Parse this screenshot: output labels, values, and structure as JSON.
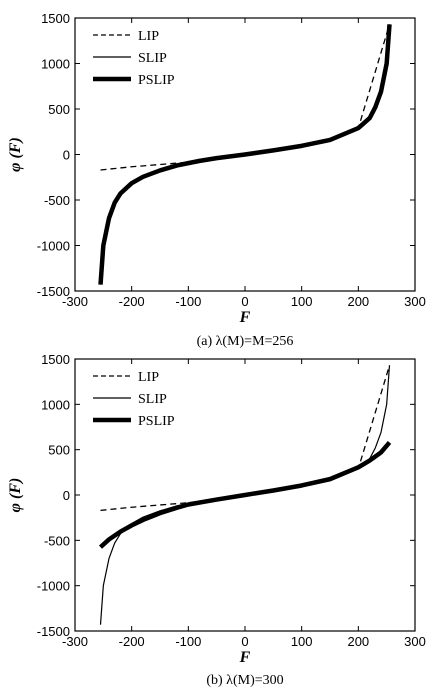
{
  "chart_data": [
    {
      "type": "line",
      "caption": "(a) λ(M)=M=256",
      "xlabel": "F",
      "ylabel": "φ (F)",
      "xlim": [
        -300,
        300
      ],
      "ylim": [
        -1500,
        1500
      ],
      "xticks": [
        "-300",
        "-200",
        "-100",
        "0",
        "100",
        "200",
        "300"
      ],
      "yticks": [
        "1500",
        "1000",
        "500",
        "0",
        "-500",
        "-1000",
        "-1500"
      ],
      "legend": "top-left",
      "series": [
        {
          "name": "LIP",
          "style": "dashed",
          "x": [
            -255,
            -200,
            -150,
            -100,
            -50,
            0,
            50,
            100,
            150,
            200,
            255
          ],
          "y": [
            -170,
            -135,
            -110,
            -85,
            -45,
            0,
            45,
            95,
            160,
            290,
            1430
          ]
        },
        {
          "name": "SLIP",
          "style": "thin",
          "x": [
            -255,
            -250,
            -240,
            -230,
            -220,
            -200,
            -180,
            -150,
            -120,
            -100,
            -80,
            -50,
            0,
            50,
            100,
            150,
            200,
            220,
            230,
            240,
            250,
            255
          ],
          "y": [
            -1430,
            -1000,
            -700,
            -530,
            -430,
            -315,
            -245,
            -175,
            -120,
            -95,
            -70,
            -40,
            0,
            45,
            95,
            160,
            290,
            400,
            520,
            690,
            1000,
            1430
          ]
        },
        {
          "name": "PSLIP",
          "style": "thick",
          "x": [
            -255,
            -250,
            -240,
            -230,
            -220,
            -200,
            -180,
            -150,
            -120,
            -100,
            -80,
            -50,
            0,
            50,
            100,
            150,
            200,
            220,
            230,
            240,
            250,
            255
          ],
          "y": [
            -1430,
            -1000,
            -700,
            -530,
            -430,
            -315,
            -245,
            -175,
            -120,
            -95,
            -70,
            -40,
            0,
            45,
            95,
            160,
            290,
            400,
            520,
            690,
            1000,
            1430
          ]
        }
      ]
    },
    {
      "type": "line",
      "caption": "(b) λ(M)=300",
      "xlabel": "F",
      "ylabel": "φ (F)",
      "xlim": [
        -300,
        300
      ],
      "ylim": [
        -1500,
        1500
      ],
      "xticks": [
        "-300",
        "-200",
        "-100",
        "0",
        "100",
        "200",
        "300"
      ],
      "yticks": [
        "1500",
        "1000",
        "500",
        "0",
        "-500",
        "-1000",
        "-1500"
      ],
      "legend": "top-left",
      "series": [
        {
          "name": "LIP",
          "style": "dashed",
          "x": [
            -255,
            -200,
            -150,
            -100,
            -50,
            0,
            50,
            100,
            150,
            200,
            255
          ],
          "y": [
            -170,
            -135,
            -110,
            -85,
            -45,
            0,
            45,
            95,
            160,
            290,
            1430
          ]
        },
        {
          "name": "SLIP",
          "style": "thin",
          "x": [
            -255,
            -250,
            -240,
            -230,
            -220,
            -200,
            -180,
            -150,
            -120,
            -100,
            -80,
            -50,
            0,
            50,
            100,
            150,
            200,
            220,
            230,
            240,
            250,
            255
          ],
          "y": [
            -1430,
            -1000,
            -700,
            -530,
            -430,
            -315,
            -245,
            -175,
            -120,
            -95,
            -70,
            -40,
            0,
            45,
            95,
            160,
            290,
            400,
            520,
            690,
            1000,
            1430
          ]
        },
        {
          "name": "PSLIP",
          "style": "thick",
          "x": [
            -255,
            -240,
            -220,
            -200,
            -180,
            -150,
            -120,
            -100,
            -50,
            0,
            50,
            100,
            150,
            200,
            220,
            240,
            255
          ],
          "y": [
            -575,
            -490,
            -405,
            -335,
            -275,
            -200,
            -140,
            -105,
            -50,
            0,
            50,
            105,
            175,
            305,
            380,
            470,
            580
          ]
        }
      ]
    }
  ]
}
